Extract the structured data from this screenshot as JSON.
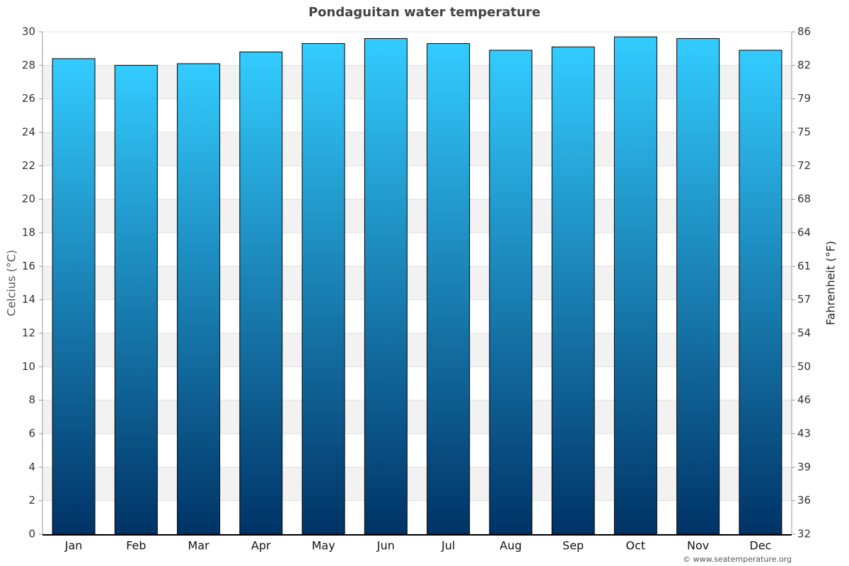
{
  "chart_data": {
    "type": "bar",
    "title": "Pondaguitan water temperature",
    "categories": [
      "Jan",
      "Feb",
      "Mar",
      "Apr",
      "May",
      "Jun",
      "Jul",
      "Aug",
      "Sep",
      "Oct",
      "Nov",
      "Dec"
    ],
    "series": [
      {
        "name": "Water temperature",
        "color": "#1a8fd0",
        "values": [
          28.4,
          28.0,
          28.1,
          28.8,
          29.3,
          29.6,
          29.3,
          28.9,
          29.1,
          29.7,
          29.6,
          28.9
        ]
      }
    ],
    "ylabel": "Celcius (°C)",
    "y2label": "Fahrenheit (°F)",
    "ylim": [
      0,
      30
    ],
    "yticks": [
      0,
      2,
      4,
      6,
      8,
      10,
      12,
      14,
      16,
      18,
      20,
      22,
      24,
      26,
      28,
      30
    ],
    "y2lim": [
      32,
      86
    ],
    "y2ticks": [
      32,
      {
        "value": 35.6,
        "label": "36"
      },
      {
        "value": 39.2,
        "label": "39"
      },
      {
        "value": 42.8,
        "label": "43"
      },
      {
        "value": 46.4,
        "label": "46"
      },
      50,
      {
        "value": 53.6,
        "label": "54"
      },
      {
        "value": 57.2,
        "label": "57"
      },
      {
        "value": 60.8,
        "label": "61"
      },
      {
        "value": 64.4,
        "label": "64"
      },
      68,
      {
        "value": 71.6,
        "label": "72"
      },
      {
        "value": 75.2,
        "label": "75"
      },
      {
        "value": 78.8,
        "label": "79"
      },
      {
        "value": 82.4,
        "label": "82"
      },
      86
    ],
    "grid": true,
    "credit": "© www.seatemperature.org"
  }
}
